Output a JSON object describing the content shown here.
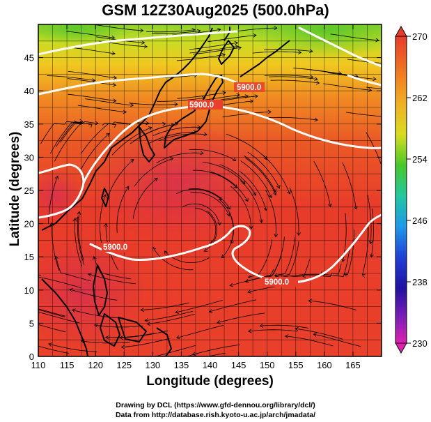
{
  "title": "GSM 12Z30Aug2025 (500.0hPa)",
  "x_axis_label": "Longitude (degrees)",
  "y_axis_label": "Latitude  (degrees)",
  "credit_line_1": "Drawing by DCL (https://www.gfd-dennou.org/library/dcl/)",
  "credit_line_2": "Data from http://database.rish.kyoto-u.ac.jp/arch/jmadata/",
  "x_ticks": [
    "110",
    "115",
    "120",
    "125",
    "130",
    "135",
    "140",
    "145",
    "150",
    "155",
    "160",
    "165"
  ],
  "y_ticks": [
    "0",
    "5",
    "10",
    "15",
    "20",
    "25",
    "30",
    "35",
    "40",
    "45"
  ],
  "colorbar_ticks": [
    "270",
    "262",
    "254",
    "246",
    "238",
    "230"
  ],
  "contour_labels": [
    "5900.0",
    "5900.0",
    "5900.0",
    "5900.0"
  ],
  "colors": {
    "warm": "#e83a2a",
    "hot": "#d8324e",
    "orange": "#f07a20",
    "yellow": "#e8d820",
    "green": "#60c828",
    "contour": "#ffffff",
    "stream": "#000000"
  },
  "chart_data": {
    "type": "heatmap",
    "title": "GSM 12Z30Aug2025 (500.0hPa)",
    "xlabel": "Longitude (degrees)",
    "ylabel": "Latitude  (degrees)",
    "xlim": [
      110,
      170
    ],
    "ylim": [
      0,
      50
    ],
    "colorbar": {
      "range": [
        230,
        270
      ],
      "ticks": [
        270,
        262,
        254,
        246,
        238,
        230
      ]
    },
    "contour_level": 5900.0,
    "grid": true
  }
}
